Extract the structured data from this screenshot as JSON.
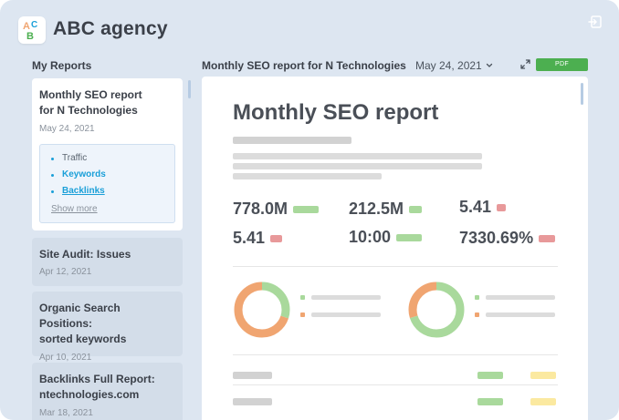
{
  "app": {
    "title": "ABC agency",
    "logo_letters": "ABC",
    "colors": {
      "background": "#dde6f1",
      "accent": "#1a9fd8",
      "pdf": "#4caf50",
      "green": "#a9d99c",
      "orange": "#f0a571",
      "red": "#e8999a",
      "yellow": "#fbe9a0"
    }
  },
  "header": {
    "exit_icon": "logout-icon"
  },
  "sidebar": {
    "title": "My Reports",
    "reports": [
      {
        "title_line1": "Monthly SEO report",
        "title_line2": "for N Technologies",
        "date": "May 24, 2021",
        "sections": [
          "Traffic",
          "Keywords",
          "Backlinks"
        ],
        "show_more": "Show more"
      },
      {
        "title_line1": "Site Audit: Issues",
        "date": "Apr 12, 2021"
      },
      {
        "title_line1": "Organic Search Positions:",
        "title_line2": "sorted keywords",
        "date": "Apr 10, 2021"
      },
      {
        "title_line1": "Backlinks Full Report:",
        "title_line2": "ntechnologies.com",
        "date": "Mar 18, 2021"
      }
    ]
  },
  "report": {
    "title": "Monthly SEO report for N Technologies",
    "date": "May 24, 2021",
    "pdf_label": "PDF",
    "expand_icon": "expand-icon",
    "preview": {
      "doc_title": "Monthly SEO report",
      "metrics": [
        {
          "value": "778.0M",
          "trend": "green"
        },
        {
          "value": "212.5M",
          "trend": "green"
        },
        {
          "value": "5.41",
          "trend": "red"
        },
        {
          "value": "5.41",
          "trend": "red"
        },
        {
          "value": "10:00",
          "trend": "green"
        },
        {
          "value": "7330.69%",
          "trend": "red"
        }
      ],
      "donuts": [
        {
          "green_fraction": 0.3,
          "orange_fraction": 0.7
        },
        {
          "green_fraction": 0.7,
          "orange_fraction": 0.3
        }
      ]
    }
  }
}
